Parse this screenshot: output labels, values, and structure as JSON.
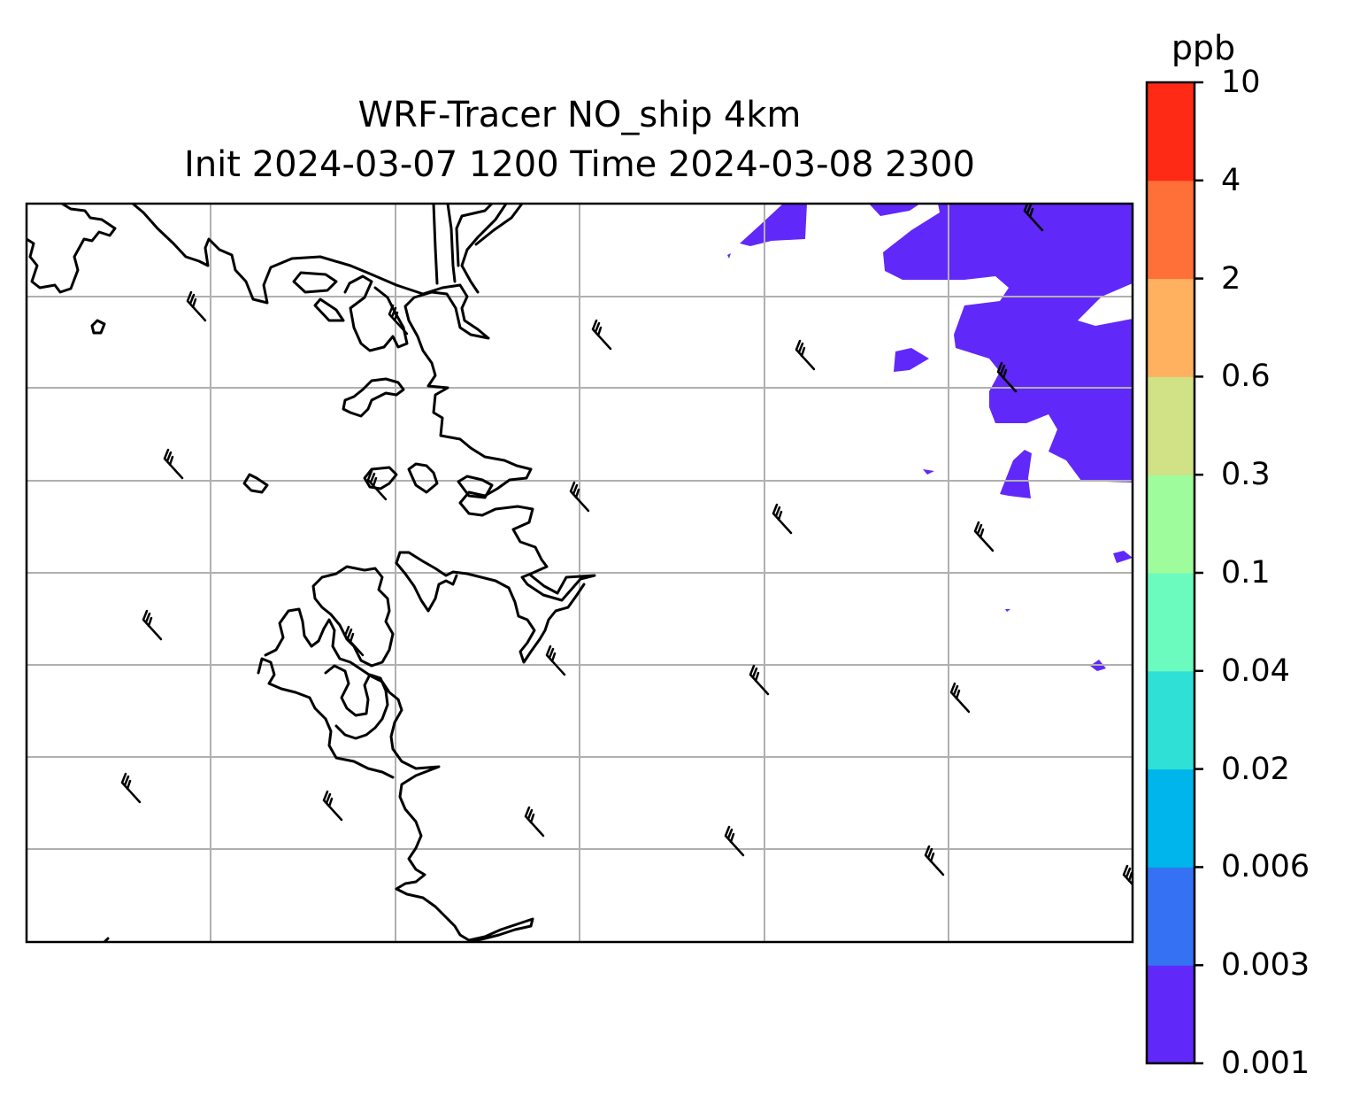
{
  "map": {
    "title_line1": "WRF-Tracer NO_ship 4km",
    "title_line2": "Init 2024-03-07 1200 Time 2024-03-08 2300",
    "field_color": "#6128fa",
    "coastline_color": "#000000",
    "grid_color": "#b0b0b0"
  },
  "colorbar": {
    "unit": "ppb",
    "levels": [
      "0.001",
      "0.003",
      "0.006",
      "0.02",
      "0.04",
      "0.1",
      "0.3",
      "0.6",
      "2",
      "4",
      "10"
    ],
    "colors": [
      "#6128fa",
      "#3472f3",
      "#00b4ec",
      "#2ee0d6",
      "#6cfbbe",
      "#9efc9c",
      "#d0e186",
      "#ffb160",
      "#ff7039",
      "#ff2a16"
    ]
  }
}
